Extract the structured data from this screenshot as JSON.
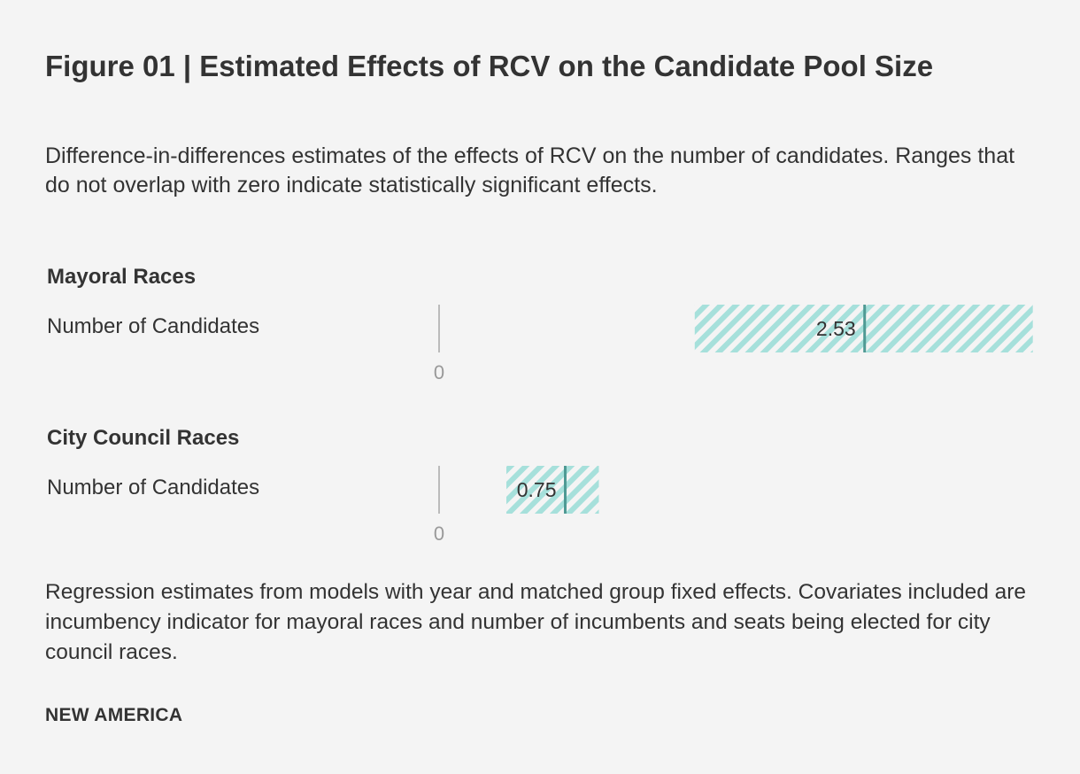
{
  "title": "Figure 01 | Estimated Effects of RCV on the Candidate Pool Size",
  "subtitle": "Difference-in-differences estimates of the effects of RCV on the number of candidates. Ranges that do not overlap with zero indicate statistically significant effects.",
  "footnote": "Regression estimates from models with year and matched group fixed effects. Covariates included are incumbency indicator for mayoral races and number of incumbents and seats being elected for city council races.",
  "source": "NEW AMERICA",
  "colors": {
    "band": "#a6e0db",
    "estimate_line": "#4f9a94",
    "zero_line": "#bbbbbb",
    "zero_label": "#999999"
  },
  "chart_data": {
    "type": "interval",
    "title": "Figure 01 | Estimated Effects of RCV on the Candidate Pool Size",
    "xlim": [
      -0.4,
      3.6
    ],
    "panels": [
      {
        "section": "Mayoral Races",
        "label": "Number of Candidates",
        "estimate": 2.53,
        "estimate_label": "2.53",
        "ci": [
          1.52,
          3.53
        ],
        "zero_label": "0"
      },
      {
        "section": "City Council Races",
        "label": "Number of Candidates",
        "estimate": 0.75,
        "estimate_label": "0.75",
        "ci": [
          0.4,
          0.95
        ],
        "zero_label": "0"
      }
    ]
  }
}
